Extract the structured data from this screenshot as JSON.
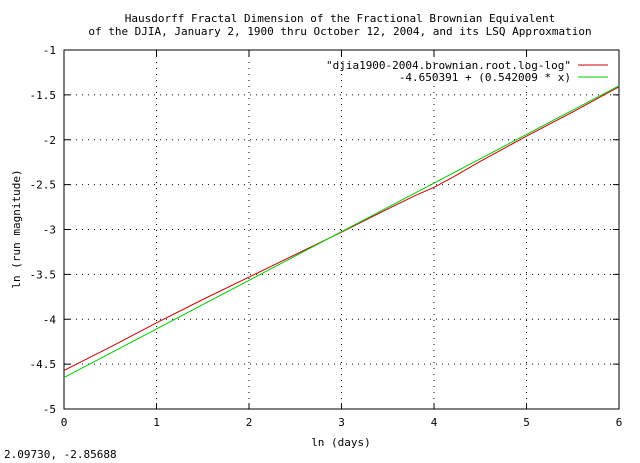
{
  "chart_data": {
    "type": "line",
    "title_lines": [
      "Hausdorff Fractal Dimension of the Fractional Brownian Equivalent",
      "of the DJIA, January 2, 1900 thru October 12, 2004, and its LSQ Approxmation"
    ],
    "xlabel": "ln (days)",
    "ylabel": "ln (run magnitude)",
    "xlim": [
      0,
      6
    ],
    "ylim": [
      -5,
      -1
    ],
    "x_ticks": [
      0,
      1,
      2,
      3,
      4,
      5,
      6
    ],
    "x_tick_labels": [
      "0",
      "1",
      "2",
      "3",
      "4",
      "5",
      "6"
    ],
    "y_ticks": [
      -5,
      -4.5,
      -4,
      -3.5,
      -3,
      -2.5,
      -2,
      -1.5,
      -1
    ],
    "y_tick_labels": [
      "-5",
      "-4.5",
      "-4",
      "-3.5",
      "-3",
      "-2.5",
      "-2",
      "-1.5",
      "-1"
    ],
    "grid": true,
    "legend_position": "top-right",
    "series": [
      {
        "name": "\"djia1900-2004.brownian.root.log-log\"",
        "color": "#cc0000",
        "x": [
          0,
          0.5,
          1,
          1.5,
          2,
          2.5,
          3,
          3.5,
          3.8,
          4,
          4.2,
          4.5,
          5,
          5.5,
          6
        ],
        "y": [
          -4.57,
          -4.31,
          -4.04,
          -3.78,
          -3.53,
          -3.28,
          -3.03,
          -2.77,
          -2.62,
          -2.53,
          -2.42,
          -2.24,
          -1.96,
          -1.69,
          -1.41
        ]
      },
      {
        "name": "-4.650391 + (0.542009 * x)",
        "color": "#00cc00",
        "x": [
          0,
          6
        ],
        "y": [
          -4.650391,
          -1.398337
        ]
      }
    ]
  },
  "status": {
    "coordinates": "2.09730, -2.85688"
  }
}
